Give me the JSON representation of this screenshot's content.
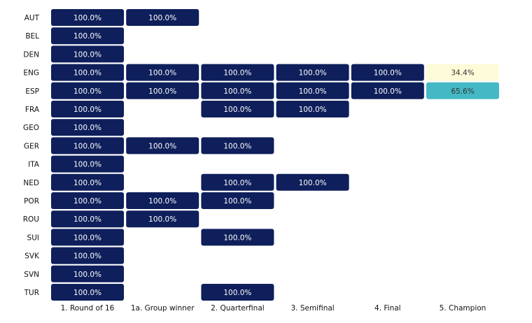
{
  "chart_data": {
    "type": "heatmap",
    "title": "",
    "xlabel": "",
    "ylabel": "",
    "columns": [
      "1. Round of 16",
      "1a. Group winner",
      "2. Quarterfinal",
      "3. Semifinal",
      "4. Final",
      "5. Champion"
    ],
    "rows": [
      "AUT",
      "BEL",
      "DEN",
      "ENG",
      "ESP",
      "FRA",
      "GEO",
      "GER",
      "ITA",
      "NED",
      "POR",
      "ROU",
      "SUI",
      "SVK",
      "SVN",
      "TUR"
    ],
    "cells": [
      {
        "row": "AUT",
        "col": "1. Round of 16",
        "value": 100.0,
        "label": "100.0%"
      },
      {
        "row": "AUT",
        "col": "1a. Group winner",
        "value": 100.0,
        "label": "100.0%"
      },
      {
        "row": "BEL",
        "col": "1. Round of 16",
        "value": 100.0,
        "label": "100.0%"
      },
      {
        "row": "DEN",
        "col": "1. Round of 16",
        "value": 100.0,
        "label": "100.0%"
      },
      {
        "row": "ENG",
        "col": "1. Round of 16",
        "value": 100.0,
        "label": "100.0%"
      },
      {
        "row": "ENG",
        "col": "1a. Group winner",
        "value": 100.0,
        "label": "100.0%"
      },
      {
        "row": "ENG",
        "col": "2. Quarterfinal",
        "value": 100.0,
        "label": "100.0%"
      },
      {
        "row": "ENG",
        "col": "3. Semifinal",
        "value": 100.0,
        "label": "100.0%"
      },
      {
        "row": "ENG",
        "col": "4. Final",
        "value": 100.0,
        "label": "100.0%"
      },
      {
        "row": "ENG",
        "col": "5. Champion",
        "value": 34.4,
        "label": "34.4%"
      },
      {
        "row": "ESP",
        "col": "1. Round of 16",
        "value": 100.0,
        "label": "100.0%"
      },
      {
        "row": "ESP",
        "col": "1a. Group winner",
        "value": 100.0,
        "label": "100.0%"
      },
      {
        "row": "ESP",
        "col": "2. Quarterfinal",
        "value": 100.0,
        "label": "100.0%"
      },
      {
        "row": "ESP",
        "col": "3. Semifinal",
        "value": 100.0,
        "label": "100.0%"
      },
      {
        "row": "ESP",
        "col": "4. Final",
        "value": 100.0,
        "label": "100.0%"
      },
      {
        "row": "ESP",
        "col": "5. Champion",
        "value": 65.6,
        "label": "65.6%"
      },
      {
        "row": "FRA",
        "col": "1. Round of 16",
        "value": 100.0,
        "label": "100.0%"
      },
      {
        "row": "FRA",
        "col": "2. Quarterfinal",
        "value": 100.0,
        "label": "100.0%"
      },
      {
        "row": "FRA",
        "col": "3. Semifinal",
        "value": 100.0,
        "label": "100.0%"
      },
      {
        "row": "GEO",
        "col": "1. Round of 16",
        "value": 100.0,
        "label": "100.0%"
      },
      {
        "row": "GER",
        "col": "1. Round of 16",
        "value": 100.0,
        "label": "100.0%"
      },
      {
        "row": "GER",
        "col": "1a. Group winner",
        "value": 100.0,
        "label": "100.0%"
      },
      {
        "row": "GER",
        "col": "2. Quarterfinal",
        "value": 100.0,
        "label": "100.0%"
      },
      {
        "row": "ITA",
        "col": "1. Round of 16",
        "value": 100.0,
        "label": "100.0%"
      },
      {
        "row": "NED",
        "col": "1. Round of 16",
        "value": 100.0,
        "label": "100.0%"
      },
      {
        "row": "NED",
        "col": "2. Quarterfinal",
        "value": 100.0,
        "label": "100.0%"
      },
      {
        "row": "NED",
        "col": "3. Semifinal",
        "value": 100.0,
        "label": "100.0%"
      },
      {
        "row": "POR",
        "col": "1. Round of 16",
        "value": 100.0,
        "label": "100.0%"
      },
      {
        "row": "POR",
        "col": "1a. Group winner",
        "value": 100.0,
        "label": "100.0%"
      },
      {
        "row": "POR",
        "col": "2. Quarterfinal",
        "value": 100.0,
        "label": "100.0%"
      },
      {
        "row": "ROU",
        "col": "1. Round of 16",
        "value": 100.0,
        "label": "100.0%"
      },
      {
        "row": "ROU",
        "col": "1a. Group winner",
        "value": 100.0,
        "label": "100.0%"
      },
      {
        "row": "SUI",
        "col": "1. Round of 16",
        "value": 100.0,
        "label": "100.0%"
      },
      {
        "row": "SUI",
        "col": "2. Quarterfinal",
        "value": 100.0,
        "label": "100.0%"
      },
      {
        "row": "SVK",
        "col": "1. Round of 16",
        "value": 100.0,
        "label": "100.0%"
      },
      {
        "row": "SVN",
        "col": "1. Round of 16",
        "value": 100.0,
        "label": "100.0%"
      },
      {
        "row": "TUR",
        "col": "1. Round of 16",
        "value": 100.0,
        "label": "100.0%"
      },
      {
        "row": "TUR",
        "col": "2. Quarterfinal",
        "value": 100.0,
        "label": "100.0%"
      }
    ],
    "color_scale": [
      {
        "value": 34.4,
        "color": "#fdfbd8",
        "text_color": "#333333"
      },
      {
        "value": 65.6,
        "color": "#44b8c4",
        "text_color": "#333333"
      },
      {
        "value": 100.0,
        "color": "#0e1f5b",
        "text_color": "#ffffff"
      }
    ],
    "grid": false,
    "legend": "none"
  }
}
